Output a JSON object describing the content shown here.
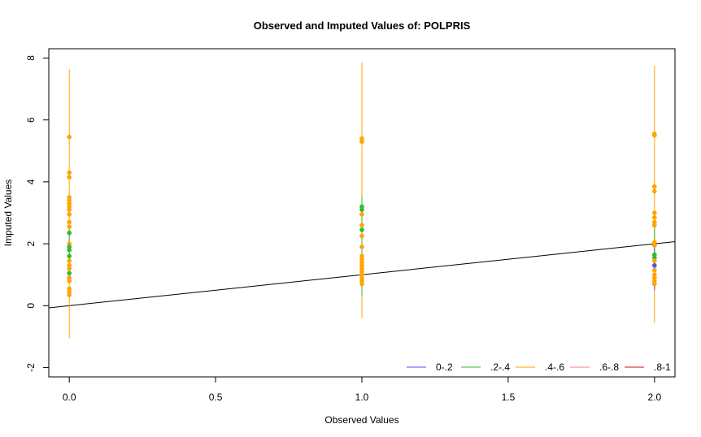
{
  "chart_data": {
    "type": "scatter",
    "title": "Observed and Imputed Values of: POLPRIS",
    "xlabel": "Observed Values",
    "ylabel": "Imputed Values",
    "xlim": [
      -0.07,
      2.07
    ],
    "ylim": [
      -2.3,
      8.3
    ],
    "xticks": [
      0.0,
      0.5,
      1.0,
      1.5,
      2.0
    ],
    "xtick_labels": [
      "0.0",
      "0.5",
      "1.0",
      "1.5",
      "2.0"
    ],
    "yticks": [
      -2,
      0,
      2,
      4,
      6,
      8
    ],
    "ytick_labels": [
      "-2",
      "0",
      "2",
      "4",
      "6",
      "8"
    ],
    "grid": false,
    "legend_position": "bottom-right",
    "reference_line": {
      "slope": 1,
      "intercept": 0,
      "color": "#000000"
    },
    "legend": [
      {
        "label": "0-.2",
        "color": "#4f4fff"
      },
      {
        "label": ".2-.4",
        "color": "#33bb33"
      },
      {
        "label": ".4-.6",
        "color": "#ffa500"
      },
      {
        "label": ".6-.8",
        "color": "#f08080"
      },
      {
        "label": ".8-1",
        "color": "#cc1111"
      }
    ],
    "series": [
      {
        "x": 0,
        "intervals": [
          {
            "low": -1.05,
            "high": 7.65,
            "color": "#ffa500"
          },
          {
            "low": 0.8,
            "high": 2.6,
            "color": "#33bb33"
          }
        ],
        "points": [
          {
            "y": 5.45,
            "color": "#ffa500"
          },
          {
            "y": 4.3,
            "color": "#ffa500"
          },
          {
            "y": 4.15,
            "color": "#ffa500"
          },
          {
            "y": 3.5,
            "color": "#ffa500"
          },
          {
            "y": 3.4,
            "color": "#ffa500"
          },
          {
            "y": 3.3,
            "color": "#ffa500"
          },
          {
            "y": 3.2,
            "color": "#ffa500"
          },
          {
            "y": 3.1,
            "color": "#ffa500"
          },
          {
            "y": 2.95,
            "color": "#ffa500"
          },
          {
            "y": 2.7,
            "color": "#ffa500"
          },
          {
            "y": 2.55,
            "color": "#ffa500"
          },
          {
            "y": 2.35,
            "color": "#33bb33"
          },
          {
            "y": 2.0,
            "color": "#ffa500"
          },
          {
            "y": 1.9,
            "color": "#33bb33"
          },
          {
            "y": 1.8,
            "color": "#33bb33"
          },
          {
            "y": 1.6,
            "color": "#33bb33"
          },
          {
            "y": 1.45,
            "color": "#ffa500"
          },
          {
            "y": 1.3,
            "color": "#ffa500"
          },
          {
            "y": 1.2,
            "color": "#ffa500"
          },
          {
            "y": 1.05,
            "color": "#33bb33"
          },
          {
            "y": 0.9,
            "color": "#ffa500"
          },
          {
            "y": 0.8,
            "color": "#ffa500"
          },
          {
            "y": 0.55,
            "color": "#ffa500"
          },
          {
            "y": 0.45,
            "color": "#ffa500"
          },
          {
            "y": 0.35,
            "color": "#ffa500"
          }
        ]
      },
      {
        "x": 1,
        "intervals": [
          {
            "low": -0.4,
            "high": 7.85,
            "color": "#ffa500"
          },
          {
            "low": 0.3,
            "high": 3.55,
            "color": "#33bb33"
          }
        ],
        "points": [
          {
            "y": 5.4,
            "color": "#ffa500"
          },
          {
            "y": 5.3,
            "color": "#ffa500"
          },
          {
            "y": 3.2,
            "color": "#33bb33"
          },
          {
            "y": 3.1,
            "color": "#33bb33"
          },
          {
            "y": 2.95,
            "color": "#ffa500"
          },
          {
            "y": 2.6,
            "color": "#ffa500"
          },
          {
            "y": 2.45,
            "color": "#33bb33"
          },
          {
            "y": 2.25,
            "color": "#ffa500"
          },
          {
            "y": 1.9,
            "color": "#ffa500"
          },
          {
            "y": 1.6,
            "color": "#ffa500"
          },
          {
            "y": 1.5,
            "color": "#ffa500"
          },
          {
            "y": 1.4,
            "color": "#ffa500"
          },
          {
            "y": 1.3,
            "color": "#ffa500"
          },
          {
            "y": 1.2,
            "color": "#ffa500"
          },
          {
            "y": 1.1,
            "color": "#ffa500"
          },
          {
            "y": 1.0,
            "color": "#ffa500"
          },
          {
            "y": 0.9,
            "color": "#ffa500"
          },
          {
            "y": 0.8,
            "color": "#ffa500"
          },
          {
            "y": 0.7,
            "color": "#ffa500"
          }
        ]
      },
      {
        "x": 2,
        "intervals": [
          {
            "low": -0.55,
            "high": 7.75,
            "color": "#ffa500"
          },
          {
            "low": 0.6,
            "high": 2.7,
            "color": "#33bb33"
          },
          {
            "low": 0.5,
            "high": 2.0,
            "color": "#4f4fff"
          }
        ],
        "points": [
          {
            "y": 5.55,
            "color": "#ffa500"
          },
          {
            "y": 5.5,
            "color": "#ffa500"
          },
          {
            "y": 3.85,
            "color": "#ffa500"
          },
          {
            "y": 3.7,
            "color": "#ffa500"
          },
          {
            "y": 3.0,
            "color": "#ffa500"
          },
          {
            "y": 2.85,
            "color": "#ffa500"
          },
          {
            "y": 2.7,
            "color": "#ffa500"
          },
          {
            "y": 2.6,
            "color": "#ffa500"
          },
          {
            "y": 2.05,
            "color": "#ffa500"
          },
          {
            "y": 1.95,
            "color": "#ffa500"
          },
          {
            "y": 1.65,
            "color": "#33bb33"
          },
          {
            "y": 1.55,
            "color": "#33bb33"
          },
          {
            "y": 1.45,
            "color": "#ffa500"
          },
          {
            "y": 1.3,
            "color": "#4f4fff"
          },
          {
            "y": 1.15,
            "color": "#ffa500"
          },
          {
            "y": 1.0,
            "color": "#ffa500"
          },
          {
            "y": 0.9,
            "color": "#ffa500"
          },
          {
            "y": 0.8,
            "color": "#ffa500"
          },
          {
            "y": 0.7,
            "color": "#ffa500"
          }
        ]
      }
    ]
  }
}
